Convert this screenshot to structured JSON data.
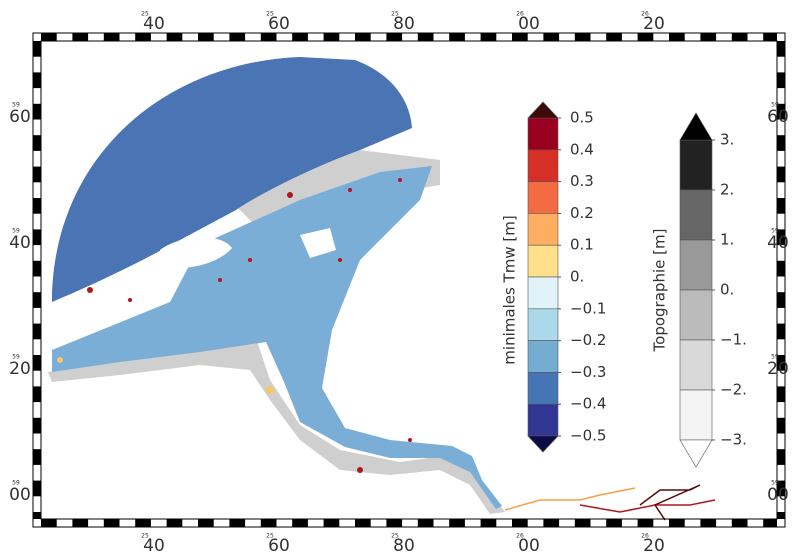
{
  "map": {
    "top_labels": [
      {
        "prefix": "25",
        "label": "40"
      },
      {
        "prefix": "25",
        "label": "60"
      },
      {
        "prefix": "25",
        "label": "80"
      },
      {
        "prefix": "26",
        "label": "00"
      },
      {
        "prefix": "26",
        "label": "20"
      }
    ],
    "side_labels": [
      {
        "prefix": "59",
        "label": "60"
      },
      {
        "prefix": "59",
        "label": "40"
      },
      {
        "prefix": "59",
        "label": "20"
      },
      {
        "prefix": "59",
        "label": "00"
      }
    ]
  },
  "colorbars": [
    {
      "title": "minimales Tmw [m]",
      "ticks": [
        {
          "value": 0.5,
          "label": "0.5"
        },
        {
          "value": 0.4,
          "label": "0.4"
        },
        {
          "value": 0.3,
          "label": "0.3"
        },
        {
          "value": 0.2,
          "label": "0.2"
        },
        {
          "value": 0.1,
          "label": "0.1"
        },
        {
          "value": 0,
          "label": "0."
        },
        {
          "value": -0.1,
          "label": "−0.1"
        },
        {
          "value": -0.2,
          "label": "−0.2"
        },
        {
          "value": -0.3,
          "label": "−0.3"
        },
        {
          "value": -0.4,
          "label": "−0.4"
        },
        {
          "value": -0.5,
          "label": "−0.5"
        }
      ],
      "colors": [
        "#99001f",
        "#d62f27",
        "#f26b43",
        "#fdae61",
        "#fee08b",
        "#e0f3f8",
        "#abd9e9",
        "#74add1",
        "#4575b4",
        "#313695"
      ],
      "extend_colors": [
        "#3d0a0a",
        "#0b0b45"
      ]
    },
    {
      "title": "Topographie [m]",
      "ticks": [
        {
          "value": 3,
          "label": "3."
        },
        {
          "value": 2,
          "label": "2."
        },
        {
          "value": 1,
          "label": "1."
        },
        {
          "value": 0,
          "label": "0."
        },
        {
          "value": -1,
          "label": "−1."
        },
        {
          "value": -2,
          "label": "−2."
        },
        {
          "value": -3,
          "label": "−3."
        }
      ],
      "colors": [
        "#222222",
        "#666666",
        "#999999",
        "#bbbbbb",
        "#d9d9d9",
        "#f4f4f4"
      ],
      "extend_colors": [
        "#000000",
        "#ffffff"
      ]
    }
  ]
}
